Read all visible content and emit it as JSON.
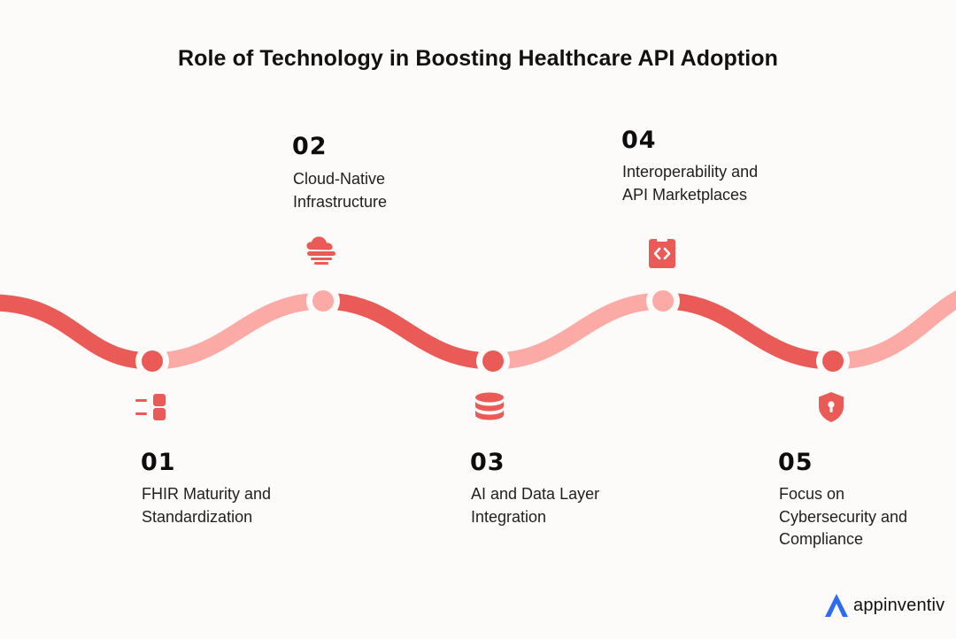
{
  "title": "Role of Technology in Boosting Healthcare API Adoption",
  "colors": {
    "primary": "#ea5b57",
    "light": "#fcaaa6",
    "background": "#fdfbf9",
    "brand": "#2d6cf0"
  },
  "steps": [
    {
      "number": "01",
      "label_lines": [
        "FHIR Maturity and",
        "Standardization"
      ],
      "icon": "list-toggle-icon"
    },
    {
      "number": "02",
      "label_lines": [
        "Cloud-Native",
        "Infrastructure"
      ],
      "icon": "cloud-server-icon"
    },
    {
      "number": "03",
      "label_lines": [
        "AI and Data Layer",
        "Integration"
      ],
      "icon": "database-icon"
    },
    {
      "number": "04",
      "label_lines": [
        "Interoperability and",
        "API Marketplaces"
      ],
      "icon": "code-clipboard-icon"
    },
    {
      "number": "05",
      "label_lines": [
        "Focus on",
        "Cybersecurity and",
        "Compliance"
      ],
      "icon": "shield-lock-icon"
    }
  ],
  "brand": {
    "name": "appinventiv",
    "icon": "appinventiv-logo-icon"
  }
}
